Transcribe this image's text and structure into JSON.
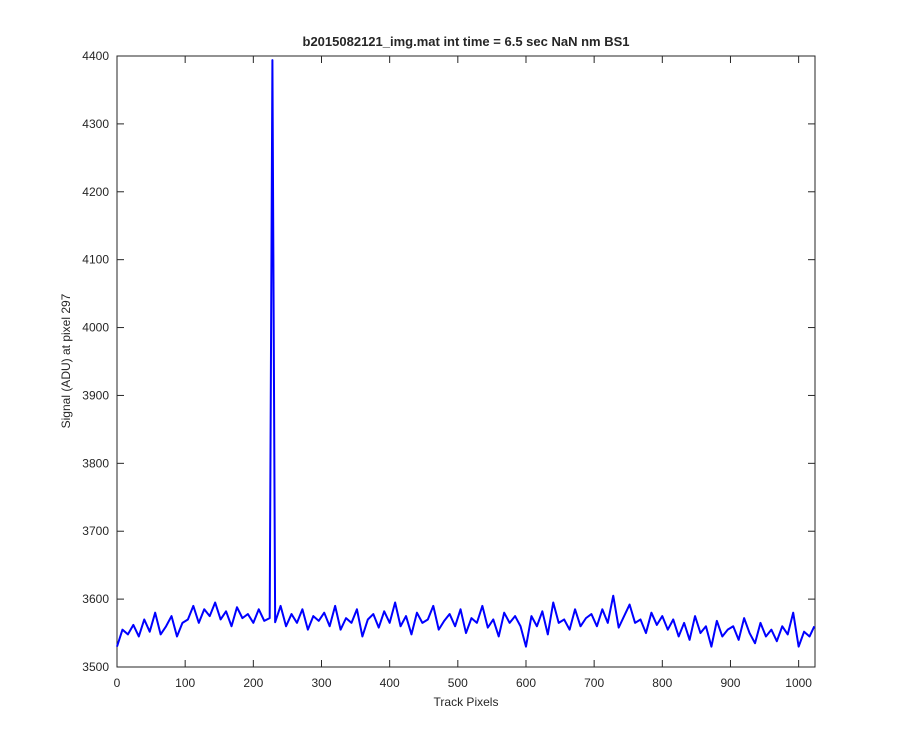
{
  "chart_data": {
    "type": "line",
    "title": "b2015082121_img.mat int time = 6.5 sec  NaN nm BS1",
    "x_label": "Track Pixels",
    "y_label": "Signal (ADU) at pixel 297",
    "color": "#0000ff",
    "x": [
      0,
      8,
      16,
      24,
      32,
      40,
      48,
      56,
      64,
      72,
      80,
      88,
      96,
      104,
      112,
      120,
      128,
      136,
      144,
      152,
      160,
      168,
      176,
      184,
      192,
      200,
      208,
      216,
      224,
      228,
      232,
      240,
      248,
      256,
      264,
      272,
      280,
      288,
      296,
      304,
      312,
      320,
      328,
      336,
      344,
      352,
      360,
      368,
      376,
      384,
      392,
      400,
      408,
      416,
      424,
      432,
      440,
      448,
      456,
      464,
      472,
      480,
      488,
      496,
      504,
      512,
      520,
      528,
      536,
      544,
      552,
      560,
      568,
      576,
      584,
      592,
      600,
      608,
      616,
      624,
      632,
      640,
      648,
      656,
      664,
      672,
      680,
      688,
      696,
      704,
      712,
      720,
      728,
      736,
      744,
      752,
      760,
      768,
      776,
      784,
      792,
      800,
      808,
      816,
      824,
      832,
      840,
      848,
      856,
      864,
      872,
      880,
      888,
      896,
      904,
      912,
      920,
      928,
      936,
      944,
      952,
      960,
      968,
      976,
      984,
      992,
      1000,
      1008,
      1016,
      1023
    ],
    "values": [
      3530,
      3555,
      3548,
      3562,
      3545,
      3570,
      3552,
      3580,
      3548,
      3560,
      3575,
      3545,
      3565,
      3570,
      3590,
      3565,
      3585,
      3575,
      3595,
      3570,
      3582,
      3560,
      3588,
      3572,
      3578,
      3565,
      3585,
      3568,
      3572,
      4394,
      3566,
      3590,
      3560,
      3578,
      3565,
      3585,
      3555,
      3575,
      3568,
      3580,
      3560,
      3590,
      3555,
      3572,
      3565,
      3585,
      3545,
      3570,
      3578,
      3558,
      3582,
      3565,
      3595,
      3560,
      3575,
      3548,
      3580,
      3565,
      3570,
      3590,
      3555,
      3568,
      3578,
      3560,
      3585,
      3550,
      3572,
      3565,
      3590,
      3558,
      3570,
      3545,
      3580,
      3565,
      3575,
      3560,
      3530,
      3575,
      3560,
      3582,
      3548,
      3595,
      3565,
      3570,
      3555,
      3585,
      3560,
      3572,
      3578,
      3560,
      3585,
      3565,
      3605,
      3558,
      3575,
      3592,
      3565,
      3570,
      3550,
      3580,
      3562,
      3575,
      3555,
      3570,
      3545,
      3565,
      3540,
      3575,
      3550,
      3560,
      3530,
      3568,
      3545,
      3555,
      3560,
      3540,
      3572,
      3550,
      3535,
      3565,
      3545,
      3555,
      3538,
      3560,
      3548,
      3580,
      3530,
      3552,
      3545,
      3560
    ],
    "xlim": [
      0,
      1024
    ],
    "ylim": [
      3500,
      4400
    ],
    "xticks": [
      0,
      100,
      200,
      300,
      400,
      500,
      600,
      700,
      800,
      900,
      1000
    ],
    "yticks": [
      3500,
      3600,
      3700,
      3800,
      3900,
      4000,
      4100,
      4200,
      4300,
      4400
    ]
  }
}
